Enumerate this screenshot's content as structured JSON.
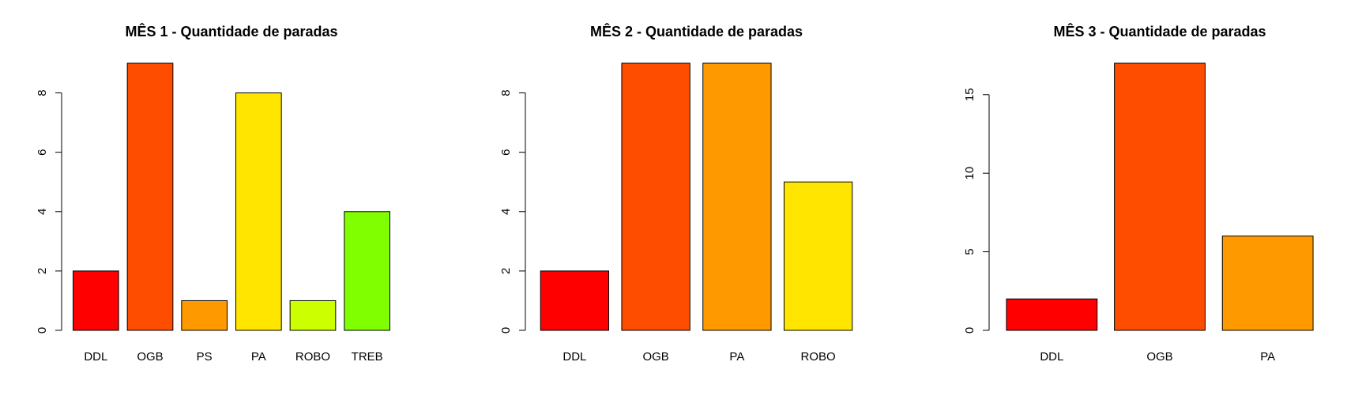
{
  "chart_data": [
    {
      "type": "bar",
      "title": "MÊS 1 - Quantidade de paradas",
      "categories": [
        "DDL",
        "OGB",
        "PS",
        "PA",
        "ROBO",
        "TREB"
      ],
      "values": [
        2,
        9,
        1,
        8,
        1,
        4
      ],
      "colors": [
        "#FF0000",
        "#FF4D00",
        "#FF9900",
        "#FFE500",
        "#CCFF00",
        "#80FF00"
      ],
      "yticks": [
        "0",
        "2",
        "4",
        "6",
        "8"
      ],
      "ylim": [
        0,
        9
      ],
      "xlabel": "",
      "ylabel": "",
      "grid": false
    },
    {
      "type": "bar",
      "title": "MÊS 2 - Quantidade de paradas",
      "categories": [
        "DDL",
        "OGB",
        "PA",
        "ROBO"
      ],
      "values": [
        2,
        9,
        9,
        5
      ],
      "colors": [
        "#FF0000",
        "#FF4D00",
        "#FF9900",
        "#FFE500"
      ],
      "yticks": [
        "0",
        "2",
        "4",
        "6",
        "8"
      ],
      "ylim": [
        0,
        9
      ],
      "xlabel": "",
      "ylabel": "",
      "grid": false
    },
    {
      "type": "bar",
      "title": "MÊS 3 - Quantidade de paradas",
      "categories": [
        "DDL",
        "OGB",
        "PA"
      ],
      "values": [
        2,
        17,
        6
      ],
      "colors": [
        "#FF0000",
        "#FF4D00",
        "#FF9900"
      ],
      "yticks": [
        "0",
        "5",
        "10",
        "15"
      ],
      "ylim": [
        0,
        17
      ],
      "xlabel": "",
      "ylabel": "",
      "grid": false
    }
  ]
}
